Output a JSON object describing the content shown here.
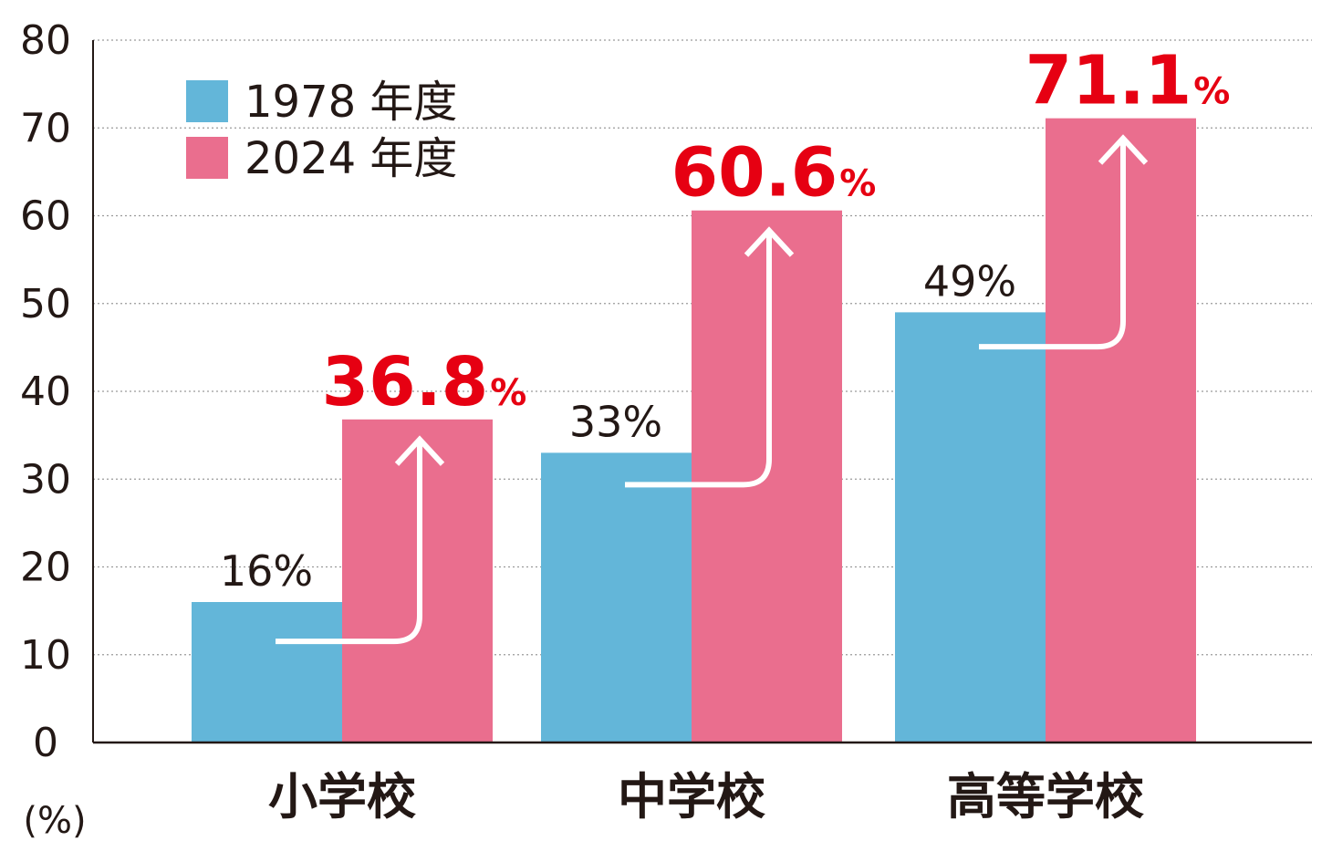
{
  "chart_data": {
    "type": "bar",
    "categories": [
      "小学校",
      "中学校",
      "高等学校"
    ],
    "series": [
      {
        "name": "1978 年度",
        "values": [
          16,
          33,
          49
        ],
        "labels": [
          "16%",
          "33%",
          "49%"
        ],
        "color": "#63b6d9"
      },
      {
        "name": "2024 年度",
        "values": [
          36.8,
          60.6,
          71.1
        ],
        "label_numbers": [
          "36.8",
          "60.6",
          "71.1"
        ],
        "label_unit": "%",
        "color": "#ea6e8e"
      }
    ],
    "ylim": [
      0,
      80
    ],
    "yticks": [
      "0",
      "10",
      "20",
      "30",
      "40",
      "50",
      "60",
      "70",
      "80"
    ],
    "yunit": "(%)",
    "grid": true,
    "legend_position": "top-left",
    "highlight_color": "#e60012",
    "arrow_color": "#ffffff"
  }
}
